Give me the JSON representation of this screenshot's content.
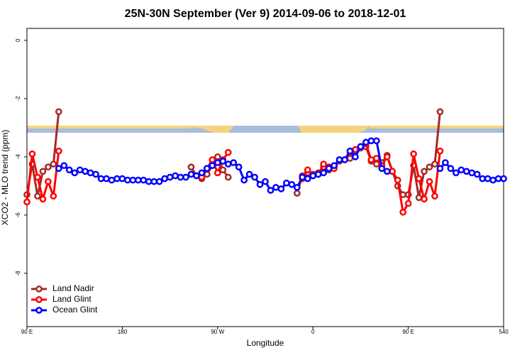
{
  "chart_data": {
    "type": "line",
    "title": "25N-30N September (Ver 9)   2014-09-06 to 2018-12-01",
    "xlabel": "Longitude",
    "ylabel": "XCO2 - MLO trend (ppm)",
    "xlim": [
      90,
      540
    ],
    "ylim": [
      -9.83,
      0.41
    ],
    "xticks": [
      {
        "value": 90,
        "label": "90 E"
      },
      180,
      {
        "value": 270,
        "label": "90 W"
      },
      {
        "value": 360,
        "label": "0"
      },
      {
        "value": 450,
        "label": "90 E"
      },
      540
    ],
    "yticks": [
      0,
      -2,
      -4,
      -6,
      -8
    ],
    "legend": "bottom-left",
    "series": [
      {
        "name": "Land Nadir",
        "color": "#a52a2a",
        "x": [
          90,
          95,
          100,
          105,
          110,
          115,
          120,
          125,
          245,
          250,
          255,
          260,
          265,
          270,
          275,
          280,
          300,
          345,
          350,
          355,
          360,
          365,
          370,
          375,
          380,
          385,
          390,
          395,
          400,
          405,
          410,
          415,
          420,
          425,
          430,
          435,
          440,
          445,
          450,
          455,
          460,
          465,
          470,
          475,
          480
        ],
        "values": [
          -5.3,
          -4.25,
          -5.35,
          -4.5,
          -4.35,
          -4.25,
          -2.45,
          null,
          -4.35,
          -4.65,
          -4.75,
          -4.6,
          -4.3,
          -4.0,
          -4.45,
          -4.7,
          null,
          -5.25,
          -4.65,
          -4.55,
          -4.65,
          -4.55,
          -4.35,
          -4.45,
          -4.35,
          -4.15,
          -4.1,
          -4.05,
          -3.8,
          -3.7,
          -3.65,
          -4.15,
          -4.25,
          -4.2,
          -3.95,
          -4.5,
          -5.0,
          -5.3,
          -5.3,
          -4.3,
          -5.4,
          -4.5,
          -4.35,
          -4.25,
          -2.45
        ]
      },
      {
        "name": "Land Glint",
        "color": "#ff0000",
        "x": [
          90,
          95,
          100,
          105,
          110,
          115,
          120,
          125,
          255,
          260,
          265,
          270,
          275,
          280,
          300,
          350,
          355,
          360,
          365,
          370,
          375,
          380,
          385,
          390,
          395,
          400,
          405,
          410,
          415,
          420,
          425,
          430,
          435,
          440,
          445,
          450,
          455,
          460,
          465,
          470,
          475,
          480
        ],
        "values": [
          -5.55,
          -3.9,
          -4.7,
          -5.45,
          -4.85,
          -5.35,
          -3.8,
          null,
          -4.7,
          -4.4,
          -4.1,
          -4.55,
          -4.1,
          -3.85,
          null,
          -4.75,
          -4.45,
          -4.6,
          -4.6,
          -4.25,
          -4.35,
          -4.4,
          -4.1,
          -4.1,
          -3.85,
          -3.75,
          -3.65,
          -3.55,
          -4.1,
          -4.05,
          -4.3,
          -4.0,
          -4.5,
          -4.8,
          -5.9,
          -5.6,
          -3.9,
          -4.75,
          -5.45,
          -4.85,
          -5.35,
          -3.8
        ]
      },
      {
        "name": "Ocean Glint",
        "color": "#0000ff",
        "x": [
          120,
          125,
          130,
          135,
          140,
          145,
          150,
          155,
          160,
          165,
          170,
          175,
          180,
          185,
          190,
          195,
          200,
          205,
          210,
          215,
          220,
          225,
          230,
          235,
          240,
          245,
          250,
          255,
          260,
          265,
          270,
          275,
          280,
          285,
          290,
          295,
          300,
          305,
          310,
          315,
          320,
          325,
          330,
          335,
          340,
          345,
          350,
          355,
          360,
          365,
          370,
          375,
          380,
          385,
          390,
          395,
          400,
          405,
          410,
          415,
          420,
          425,
          430,
          455,
          480,
          485,
          490,
          495,
          500,
          505,
          510,
          515,
          520,
          525,
          530,
          535,
          540
        ],
        "values": [
          -4.4,
          -4.3,
          -4.45,
          -4.55,
          -4.45,
          -4.5,
          -4.55,
          -4.6,
          -4.75,
          -4.75,
          -4.8,
          -4.75,
          -4.75,
          -4.8,
          -4.8,
          -4.8,
          -4.8,
          -4.85,
          -4.85,
          -4.85,
          -4.75,
          -4.7,
          -4.65,
          -4.7,
          -4.7,
          -4.6,
          -4.65,
          -4.55,
          -4.4,
          -4.3,
          -4.2,
          -4.15,
          -4.25,
          -4.2,
          -4.35,
          -4.8,
          -4.6,
          -4.7,
          -4.95,
          -4.85,
          -5.15,
          -5.05,
          -5.1,
          -4.9,
          -4.95,
          -5.05,
          -4.7,
          -4.75,
          -4.65,
          -4.6,
          -4.55,
          -4.4,
          -4.3,
          -4.1,
          -4.1,
          -3.8,
          -4.0,
          -3.65,
          -3.5,
          -3.45,
          -3.45,
          -4.4,
          -4.5,
          null,
          -4.4,
          -4.2,
          -4.4,
          -4.55,
          -4.45,
          -4.5,
          -4.55,
          -4.6,
          -4.75,
          -4.75,
          -4.8,
          -4.75,
          -4.75
        ]
      }
    ]
  }
}
